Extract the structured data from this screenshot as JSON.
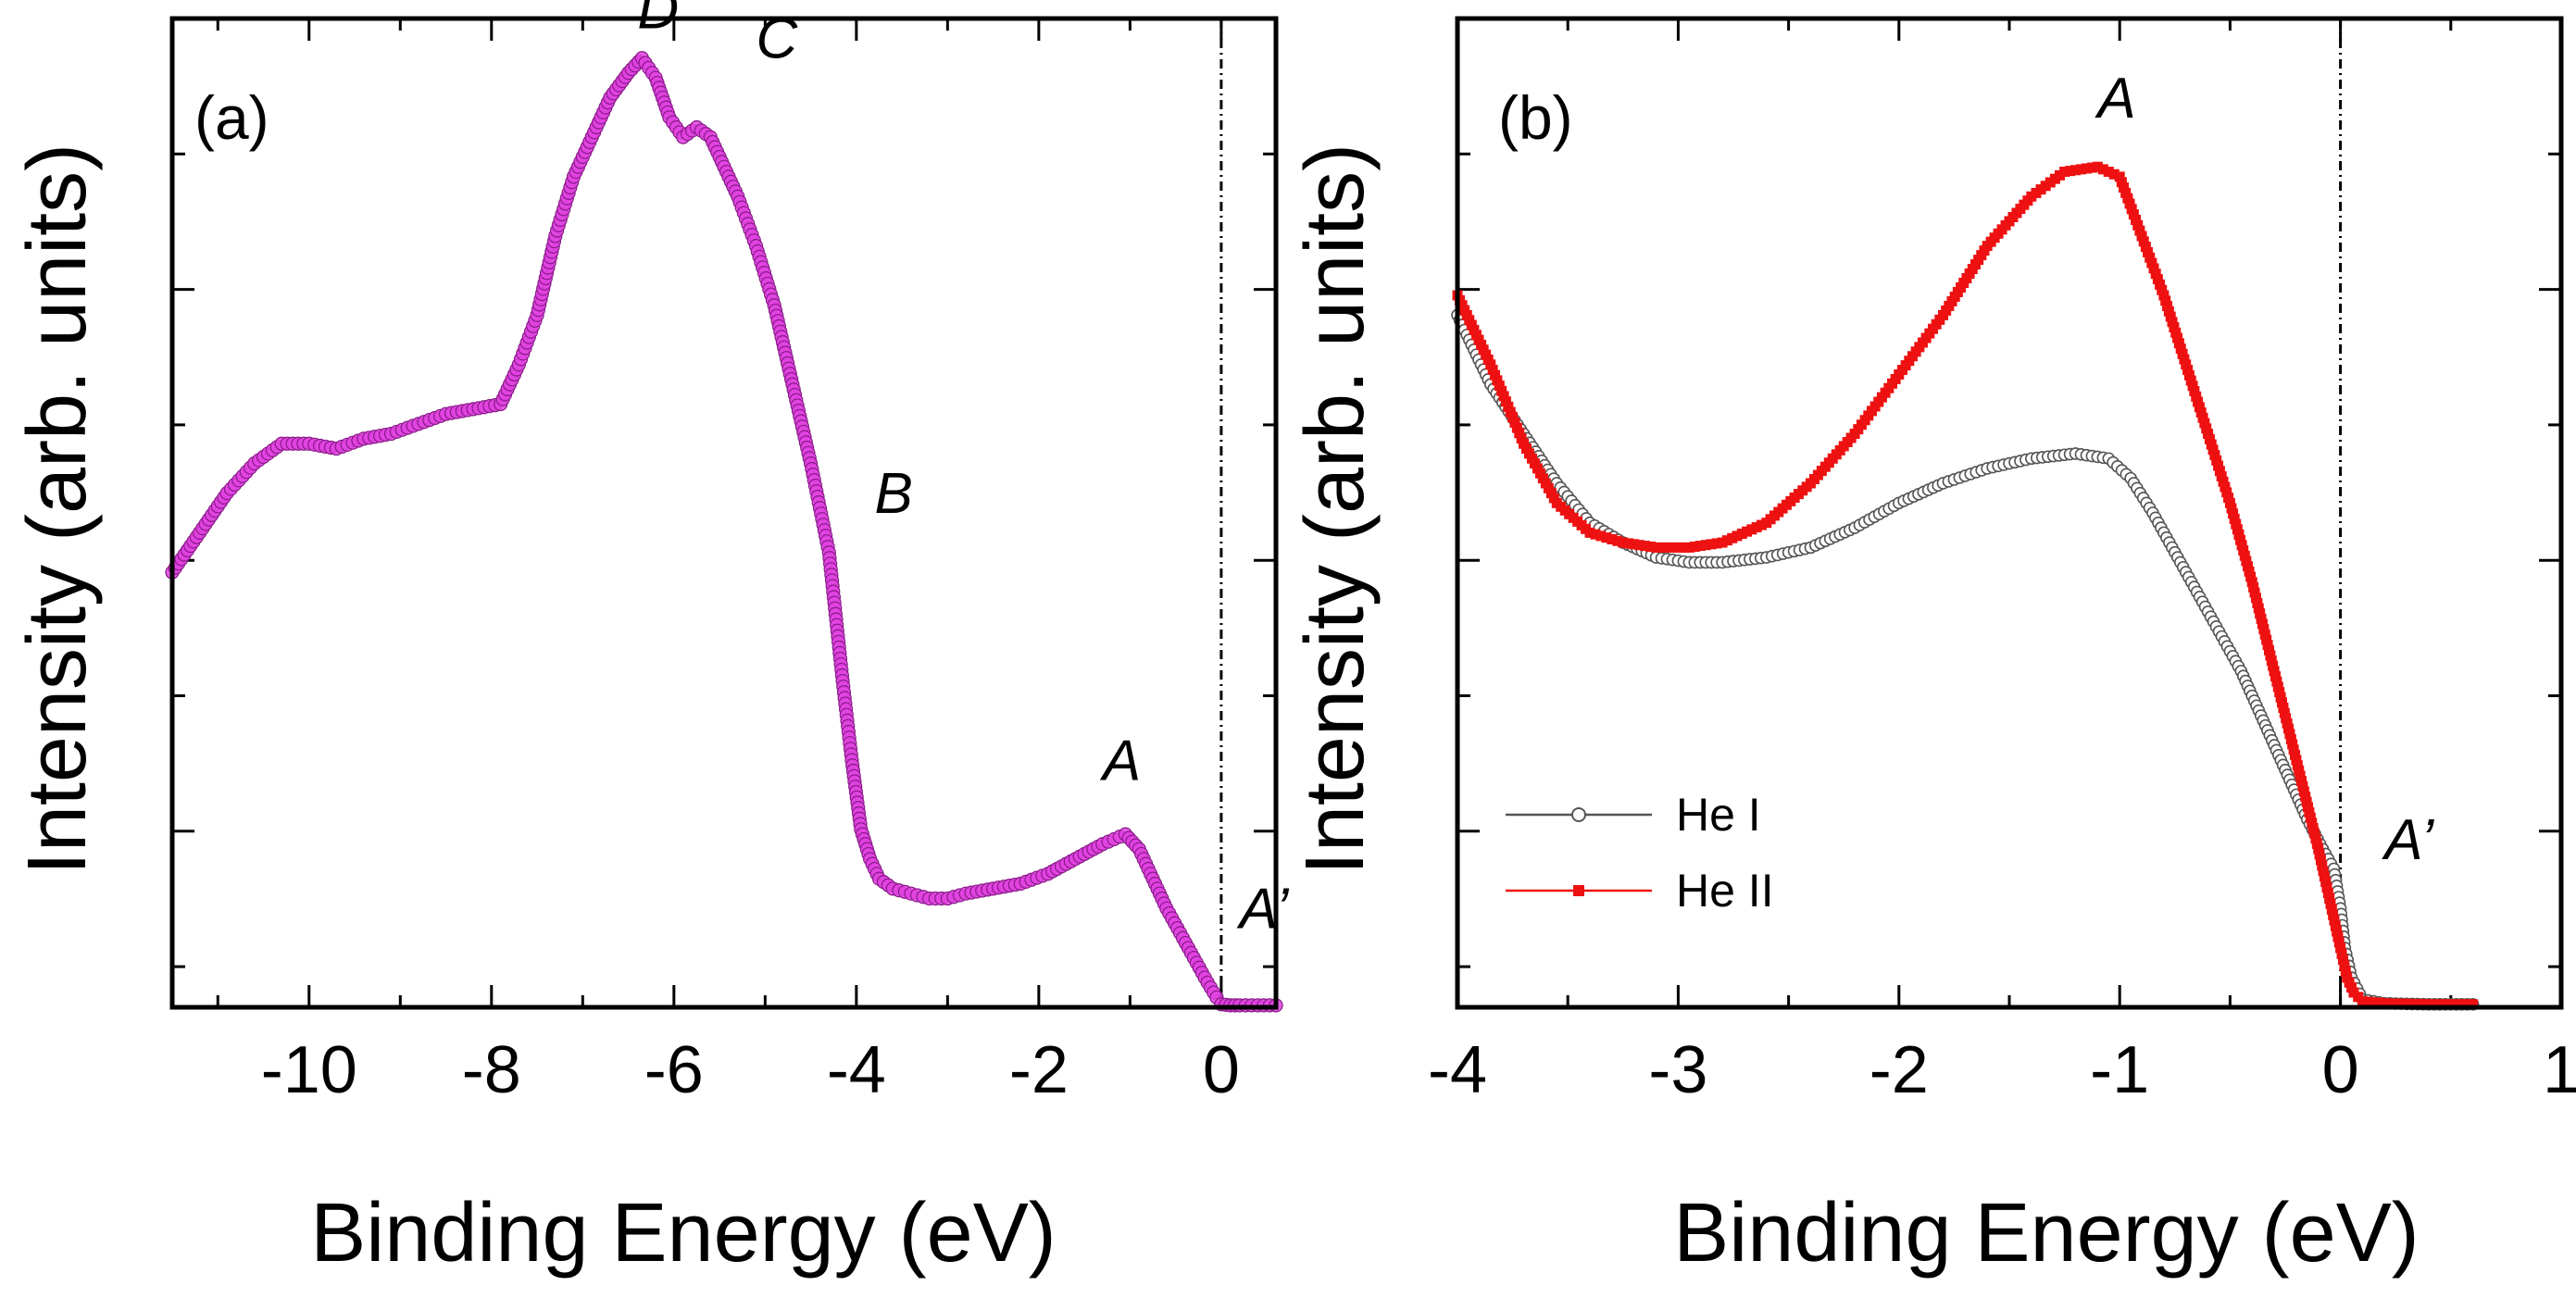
{
  "chart_data": [
    {
      "type": "scatter",
      "panel_label": "(a)",
      "xlabel": "Binding Energy (eV)",
      "ylabel": "Intensity (arb. units)",
      "xlim": [
        -11.5,
        0.6
      ],
      "ylim": [
        0,
        100
      ],
      "xticks": [
        -10,
        -8,
        -6,
        -4,
        -2,
        0
      ],
      "xtick_labels": [
        "-10",
        "-8",
        "-6",
        "-4",
        "-2",
        "0"
      ],
      "fermi_level": 0,
      "series": [
        {
          "name": "spectrum",
          "color": "#e040e0",
          "marker": "circle",
          "x": [
            -11.5,
            -11.2,
            -10.9,
            -10.6,
            -10.3,
            -10.0,
            -9.7,
            -9.4,
            -9.1,
            -8.8,
            -8.5,
            -8.2,
            -7.9,
            -7.7,
            -7.5,
            -7.3,
            -7.1,
            -6.9,
            -6.7,
            -6.5,
            -6.35,
            -6.2,
            -6.05,
            -5.9,
            -5.75,
            -5.6,
            -5.45,
            -5.3,
            -5.1,
            -4.9,
            -4.7,
            -4.5,
            -4.3,
            -4.15,
            -4.05,
            -3.95,
            -3.85,
            -3.75,
            -3.6,
            -3.4,
            -3.2,
            -3.0,
            -2.8,
            -2.5,
            -2.2,
            -1.9,
            -1.6,
            -1.3,
            -1.05,
            -0.9,
            -0.75,
            -0.6,
            -0.45,
            -0.3,
            -0.15,
            -0.05,
            0.0,
            0.1,
            0.2,
            0.4,
            0.6
          ],
          "y": [
            44,
            48,
            52,
            55,
            57,
            57,
            56.5,
            57.5,
            58,
            59,
            60,
            60.5,
            61,
            65,
            70,
            78,
            84,
            88,
            92,
            94.5,
            96,
            94,
            90,
            88,
            89,
            88,
            85,
            82,
            77,
            71,
            63,
            55,
            46,
            33,
            25,
            18,
            15,
            13,
            12,
            11.5,
            11,
            11,
            11.5,
            12,
            12.5,
            13.5,
            15,
            16.5,
            17.5,
            16,
            13,
            10,
            7.5,
            5,
            2.5,
            1,
            0.3,
            0.2,
            0.2,
            0.2,
            0.2
          ]
        }
      ],
      "annotations": [
        {
          "text": "D",
          "x": -6.4,
          "y": 99
        },
        {
          "text": "C",
          "x": -5.1,
          "y": 96
        },
        {
          "text": "B",
          "x": -3.8,
          "y": 50
        },
        {
          "text": "A",
          "x": -1.3,
          "y": 23
        },
        {
          "text": "A’",
          "x": 0.2,
          "y": 8
        }
      ]
    },
    {
      "type": "line",
      "panel_label": "(b)",
      "xlabel": "Binding Energy (eV)",
      "ylabel": "Intensity (arb. units)",
      "xlim": [
        -4,
        1
      ],
      "ylim": [
        0,
        100
      ],
      "xticks": [
        -4,
        -3,
        -2,
        -1,
        0,
        1
      ],
      "xtick_labels": [
        "-4",
        "-3",
        "-2",
        "-1",
        "0",
        "1"
      ],
      "fermi_level": 0,
      "series": [
        {
          "name": "He I",
          "color": "#555555",
          "marker": "open-circle",
          "x": [
            -4.0,
            -3.85,
            -3.7,
            -3.55,
            -3.4,
            -3.25,
            -3.1,
            -2.95,
            -2.8,
            -2.6,
            -2.4,
            -2.2,
            -2.0,
            -1.8,
            -1.6,
            -1.4,
            -1.2,
            -1.05,
            -0.95,
            -0.85,
            -0.75,
            -0.65,
            -0.55,
            -0.45,
            -0.35,
            -0.25,
            -0.15,
            -0.08,
            -0.03,
            0.0,
            0.02,
            0.05,
            0.1,
            0.2,
            0.4,
            0.6
          ],
          "y": [
            70,
            63,
            58,
            53,
            49,
            47,
            45.5,
            45,
            45,
            45.5,
            46.5,
            48.5,
            51,
            53,
            54.5,
            55.5,
            56,
            55.5,
            53.5,
            50,
            46,
            42,
            38,
            34,
            29,
            24,
            19,
            16,
            14,
            10,
            6,
            3,
            0.8,
            0.4,
            0.3,
            0.3
          ]
        },
        {
          "name": "He II",
          "color": "#ee1111",
          "marker": "filled-square",
          "x": [
            -4.0,
            -3.85,
            -3.7,
            -3.55,
            -3.4,
            -3.25,
            -3.1,
            -2.95,
            -2.8,
            -2.6,
            -2.4,
            -2.2,
            -2.0,
            -1.8,
            -1.6,
            -1.4,
            -1.25,
            -1.1,
            -1.0,
            -0.9,
            -0.8,
            -0.7,
            -0.6,
            -0.5,
            -0.4,
            -0.3,
            -0.2,
            -0.1,
            -0.05,
            0.0,
            0.03,
            0.06,
            0.1,
            0.2,
            0.4,
            0.6
          ],
          "y": [
            72,
            65,
            57,
            51,
            48,
            47,
            46.5,
            46.5,
            47,
            49,
            53,
            58,
            64,
            70,
            77,
            82,
            84.5,
            85,
            84,
            78,
            72,
            65,
            58,
            51,
            43,
            34,
            25,
            16,
            11,
            6,
            3,
            1.5,
            0.6,
            0.4,
            0.3,
            0.3
          ]
        }
      ],
      "legend": {
        "position": "lower-left",
        "entries": [
          "He I",
          "He II"
        ]
      },
      "annotations": [
        {
          "text": "A",
          "x": -1.1,
          "y": 90
        },
        {
          "text": "A’",
          "x": 0.2,
          "y": 15
        }
      ]
    }
  ]
}
